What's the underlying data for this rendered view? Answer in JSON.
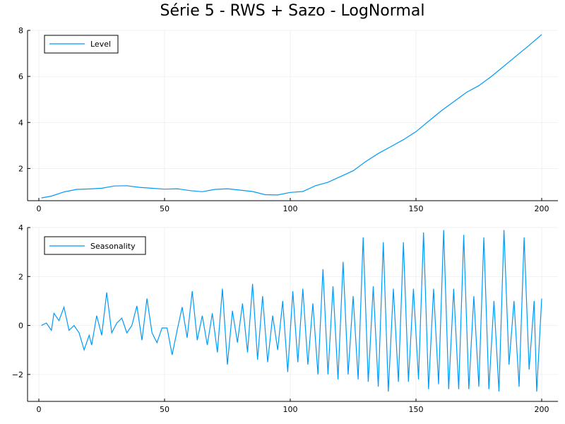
{
  "chart_data": [
    {
      "type": "line",
      "title": "Série 5 - RWS + Sazo - LogNormal",
      "xlim": [
        1,
        200
      ],
      "ylim": [
        0.6,
        8.0
      ],
      "xticks": [
        "0",
        "50",
        "100",
        "150",
        "200"
      ],
      "yticks": [
        "2",
        "4",
        "6",
        "8"
      ],
      "grid": true,
      "legend_position": "top-left",
      "series": [
        {
          "name": "Level",
          "color": "#009af9",
          "points": [
            [
              1,
              0.72
            ],
            [
              5,
              0.8
            ],
            [
              10,
              0.98
            ],
            [
              15,
              1.09
            ],
            [
              20,
              1.11
            ],
            [
              25,
              1.14
            ],
            [
              30,
              1.24
            ],
            [
              35,
              1.25
            ],
            [
              40,
              1.18
            ],
            [
              45,
              1.14
            ],
            [
              50,
              1.1
            ],
            [
              55,
              1.12
            ],
            [
              60,
              1.04
            ],
            [
              65,
              0.99
            ],
            [
              70,
              1.09
            ],
            [
              75,
              1.12
            ],
            [
              80,
              1.06
            ],
            [
              85,
              1.0
            ],
            [
              90,
              0.86
            ],
            [
              95,
              0.85
            ],
            [
              100,
              0.96
            ],
            [
              105,
              1.0
            ],
            [
              110,
              1.25
            ],
            [
              115,
              1.4
            ],
            [
              120,
              1.65
            ],
            [
              125,
              1.9
            ],
            [
              130,
              2.3
            ],
            [
              135,
              2.65
            ],
            [
              140,
              2.95
            ],
            [
              145,
              3.25
            ],
            [
              150,
              3.6
            ],
            [
              155,
              4.05
            ],
            [
              160,
              4.5
            ],
            [
              165,
              4.9
            ],
            [
              170,
              5.3
            ],
            [
              175,
              5.6
            ],
            [
              180,
              6.0
            ],
            [
              185,
              6.45
            ],
            [
              190,
              6.9
            ],
            [
              195,
              7.35
            ],
            [
              200,
              7.82
            ]
          ]
        }
      ]
    },
    {
      "type": "line",
      "xlim": [
        1,
        200
      ],
      "ylim": [
        -3.1,
        4.0
      ],
      "xticks": [
        "0",
        "50",
        "100",
        "150",
        "200"
      ],
      "yticks": [
        "−2",
        "0",
        "2",
        "4"
      ],
      "grid": true,
      "legend_position": "top-left",
      "series": [
        {
          "name": "Seasonality",
          "color": "#009af9",
          "points": [
            [
              1,
              0.0
            ],
            [
              3,
              0.1
            ],
            [
              5,
              -0.2
            ],
            [
              6,
              0.5
            ],
            [
              8,
              0.2
            ],
            [
              10,
              0.75
            ],
            [
              12,
              -0.2
            ],
            [
              14,
              0.0
            ],
            [
              16,
              -0.3
            ],
            [
              18,
              -1.0
            ],
            [
              20,
              -0.4
            ],
            [
              21,
              -0.8
            ],
            [
              23,
              0.4
            ],
            [
              25,
              -0.4
            ],
            [
              27,
              1.35
            ],
            [
              29,
              -0.3
            ],
            [
              31,
              0.1
            ],
            [
              33,
              0.3
            ],
            [
              35,
              -0.3
            ],
            [
              37,
              0.0
            ],
            [
              39,
              0.8
            ],
            [
              41,
              -0.6
            ],
            [
              43,
              1.1
            ],
            [
              45,
              -0.3
            ],
            [
              47,
              -0.7
            ],
            [
              49,
              -0.1
            ],
            [
              51,
              -0.1
            ],
            [
              53,
              -1.2
            ],
            [
              55,
              -0.2
            ],
            [
              57,
              0.75
            ],
            [
              59,
              -0.5
            ],
            [
              61,
              1.4
            ],
            [
              63,
              -0.6
            ],
            [
              65,
              0.4
            ],
            [
              67,
              -0.8
            ],
            [
              69,
              0.5
            ],
            [
              71,
              -1.1
            ],
            [
              73,
              1.5
            ],
            [
              75,
              -1.6
            ],
            [
              77,
              0.6
            ],
            [
              79,
              -0.7
            ],
            [
              81,
              0.9
            ],
            [
              83,
              -1.1
            ],
            [
              85,
              1.7
            ],
            [
              87,
              -1.4
            ],
            [
              89,
              1.2
            ],
            [
              91,
              -1.5
            ],
            [
              93,
              0.4
            ],
            [
              95,
              -1.0
            ],
            [
              97,
              1.0
            ],
            [
              99,
              -1.9
            ],
            [
              101,
              1.4
            ],
            [
              103,
              -1.5
            ],
            [
              105,
              1.5
            ],
            [
              107,
              -1.6
            ],
            [
              109,
              0.9
            ],
            [
              111,
              -2.0
            ],
            [
              113,
              2.3
            ],
            [
              115,
              -2.0
            ],
            [
              117,
              1.6
            ],
            [
              119,
              -2.2
            ],
            [
              121,
              2.6
            ],
            [
              123,
              -2.0
            ],
            [
              125,
              1.2
            ],
            [
              127,
              -2.2
            ],
            [
              129,
              3.6
            ],
            [
              131,
              -2.3
            ],
            [
              133,
              1.6
            ],
            [
              135,
              -2.5
            ],
            [
              137,
              3.4
            ],
            [
              139,
              -2.7
            ],
            [
              141,
              1.5
            ],
            [
              143,
              -2.3
            ],
            [
              145,
              3.4
            ],
            [
              147,
              -2.3
            ],
            [
              149,
              1.5
            ],
            [
              151,
              -2.2
            ],
            [
              153,
              3.8
            ],
            [
              155,
              -2.6
            ],
            [
              157,
              1.5
            ],
            [
              159,
              -2.4
            ],
            [
              161,
              3.9
            ],
            [
              163,
              -2.6
            ],
            [
              165,
              1.5
            ],
            [
              167,
              -2.6
            ],
            [
              169,
              3.7
            ],
            [
              171,
              -2.6
            ],
            [
              173,
              1.2
            ],
            [
              175,
              -2.5
            ],
            [
              177,
              3.6
            ],
            [
              179,
              -2.6
            ],
            [
              181,
              1.0
            ],
            [
              183,
              -2.7
            ],
            [
              185,
              3.9
            ],
            [
              187,
              -1.6
            ],
            [
              189,
              1.0
            ],
            [
              191,
              -2.5
            ],
            [
              193,
              3.6
            ],
            [
              195,
              -1.8
            ],
            [
              197,
              1.0
            ],
            [
              198,
              -2.7
            ],
            [
              200,
              1.1
            ]
          ]
        }
      ]
    }
  ]
}
